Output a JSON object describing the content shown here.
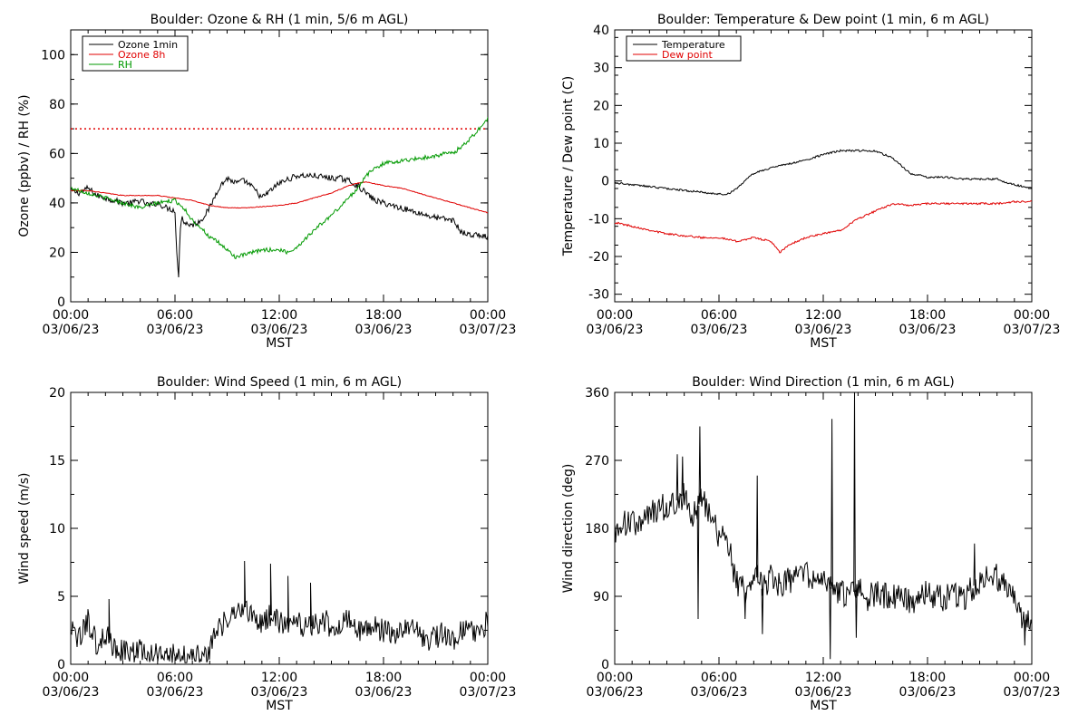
{
  "chart_data": [
    {
      "id": "ozone",
      "type": "line",
      "title": "Boulder: Ozone & RH (1 min, 5/6 m AGL)",
      "ylabel": "Ozone (ppbv) / RH (%)",
      "xlabel": "MST",
      "ylim": [
        0,
        110
      ],
      "yticks": [
        0,
        20,
        40,
        60,
        80,
        100
      ],
      "xlim": [
        0,
        24
      ],
      "xtick_hours": [
        0,
        6,
        12,
        18,
        24
      ],
      "xtick_times": [
        "00:00",
        "06:00",
        "12:00",
        "18:00",
        "00:00"
      ],
      "xtick_dates": [
        "03/06/23",
        "03/06/23",
        "03/06/23",
        "03/06/23",
        "03/07/23"
      ],
      "legend_position": "top-left",
      "hline": {
        "y": 70,
        "color": "#e00000",
        "style": "dotted"
      },
      "series": [
        {
          "name": "Ozone 1min",
          "color": "#000000",
          "x": [
            0,
            0.5,
            1,
            1.5,
            2,
            2.5,
            3,
            3.5,
            4,
            4.5,
            5,
            5.5,
            6,
            6.1,
            6.2,
            6.3,
            6.4,
            6.5,
            7,
            7.5,
            8,
            8.5,
            9,
            9.5,
            10,
            10.5,
            11,
            11.5,
            12,
            13,
            14,
            15,
            15.5,
            16,
            16.5,
            17,
            17.5,
            18,
            19,
            20,
            21,
            22,
            22.5,
            23,
            23.5,
            24
          ],
          "y": [
            45,
            44,
            46,
            43,
            42,
            41,
            40,
            40,
            41,
            39,
            40,
            38,
            37,
            20,
            9,
            30,
            35,
            32,
            31,
            33,
            38,
            46,
            50,
            48,
            49,
            46,
            42,
            45,
            48,
            51,
            51,
            50,
            50,
            49,
            47,
            44,
            41,
            40,
            38,
            36,
            34,
            33,
            28,
            27,
            27,
            26
          ]
        },
        {
          "name": "Ozone 8h",
          "color": "#e00000",
          "x": [
            0,
            1,
            2,
            3,
            4,
            5,
            6,
            7,
            8,
            9,
            10,
            11,
            12,
            13,
            14,
            15,
            16,
            16.5,
            17,
            18,
            19,
            20,
            21,
            22,
            23,
            24
          ],
          "y": [
            45,
            45,
            44,
            43,
            43,
            43,
            42,
            41,
            39,
            38,
            38,
            38.5,
            39,
            40,
            42,
            44,
            47,
            48,
            48.5,
            47,
            46,
            44,
            42,
            40,
            38,
            36
          ]
        },
        {
          "name": "RH",
          "color": "#009900",
          "x": [
            0,
            1,
            2,
            3,
            4,
            5,
            6,
            6.5,
            7,
            7.5,
            8,
            8.5,
            9,
            9.5,
            10,
            11,
            12,
            12.5,
            13,
            14,
            15,
            16,
            16.5,
            17,
            17.5,
            18,
            19,
            20,
            21,
            21.5,
            22,
            22.5,
            23,
            23.5,
            24
          ],
          "y": [
            46,
            44,
            42,
            40,
            38,
            40,
            41,
            38,
            33,
            30,
            26,
            24,
            21,
            18,
            19,
            21,
            21,
            20,
            22,
            29,
            35,
            42,
            46,
            51,
            54,
            56,
            57,
            58,
            59,
            60,
            60,
            63,
            66,
            70,
            74
          ]
        }
      ]
    },
    {
      "id": "temp",
      "type": "line",
      "title": "Boulder: Temperature & Dew point (1 min, 6 m AGL)",
      "ylabel": "Temperature / Dew point (C)",
      "xlabel": "MST",
      "ylim": [
        -32,
        40
      ],
      "yticks": [
        -30,
        -20,
        -10,
        0,
        10,
        20,
        30,
        40
      ],
      "xlim": [
        0,
        24
      ],
      "xtick_hours": [
        0,
        6,
        12,
        18,
        24
      ],
      "xtick_times": [
        "00:00",
        "06:00",
        "12:00",
        "18:00",
        "00:00"
      ],
      "xtick_dates": [
        "03/06/23",
        "03/06/23",
        "03/06/23",
        "03/06/23",
        "03/07/23"
      ],
      "legend_position": "top-left",
      "series": [
        {
          "name": "Temperature",
          "color": "#000000",
          "x": [
            0,
            1,
            2,
            3,
            4,
            5,
            6,
            6.5,
            7,
            7.5,
            8,
            9,
            10,
            11,
            12,
            13,
            14,
            15,
            16,
            16.5,
            17,
            18,
            19,
            20,
            21,
            22,
            22.5,
            23,
            24
          ],
          "y": [
            -0.5,
            -1,
            -1.5,
            -2,
            -2.5,
            -3,
            -3.5,
            -3.5,
            -2,
            0,
            2,
            3.5,
            4.5,
            5.5,
            7,
            8,
            8,
            8,
            6,
            4,
            2,
            1,
            1,
            0.5,
            0.5,
            0.5,
            -0.5,
            -1,
            -2
          ]
        },
        {
          "name": "Dew point",
          "color": "#e00000",
          "x": [
            0,
            1,
            2,
            3,
            4,
            5,
            6,
            7,
            8,
            9,
            9.5,
            10,
            11,
            12,
            13,
            14,
            15,
            16,
            17,
            18,
            19,
            20,
            21,
            22,
            23,
            24
          ],
          "y": [
            -11,
            -12,
            -13,
            -14,
            -14.5,
            -15,
            -15,
            -16,
            -15,
            -16,
            -19,
            -17,
            -15,
            -14,
            -13,
            -10,
            -8,
            -6,
            -6.5,
            -6,
            -6,
            -6,
            -6,
            -6,
            -5.5,
            -5.5
          ]
        }
      ]
    },
    {
      "id": "wspd",
      "type": "line",
      "title": "Boulder: Wind Speed (1 min, 6 m AGL)",
      "ylabel": "Wind speed (m/s)",
      "xlabel": "MST",
      "ylim": [
        0,
        20
      ],
      "yticks": [
        0,
        5,
        10,
        15,
        20
      ],
      "xlim": [
        0,
        24
      ],
      "xtick_hours": [
        0,
        6,
        12,
        18,
        24
      ],
      "xtick_times": [
        "00:00",
        "06:00",
        "12:00",
        "18:00",
        "00:00"
      ],
      "xtick_dates": [
        "03/06/23",
        "03/06/23",
        "03/06/23",
        "03/06/23",
        "03/07/23"
      ],
      "series": [
        {
          "name": "",
          "color": "#000000",
          "x": [
            0,
            0.5,
            1,
            1.5,
            2,
            2.5,
            3,
            3.5,
            4,
            4.5,
            5,
            5.5,
            6,
            6.5,
            7,
            7.5,
            8,
            8.5,
            9,
            9.5,
            10,
            10.5,
            11,
            11.5,
            12,
            12.5,
            13,
            13.5,
            14,
            14.5,
            15,
            15.5,
            16,
            16.5,
            17,
            17.5,
            18,
            18.5,
            19,
            19.5,
            20,
            20.5,
            21,
            21.5,
            22,
            22.5,
            23,
            23.5,
            24
          ],
          "y": [
            2.5,
            1.8,
            3.2,
            1.5,
            2.2,
            1.2,
            1.0,
            0.8,
            1.1,
            0.6,
            0.7,
            0.9,
            0.7,
            0.5,
            0.8,
            0.6,
            1.2,
            2.6,
            3.2,
            3.8,
            4.2,
            3.5,
            3.0,
            3.6,
            3.1,
            2.8,
            3.3,
            2.6,
            2.9,
            3.4,
            2.7,
            3.0,
            3.2,
            2.6,
            2.5,
            2.9,
            2.4,
            2.2,
            2.5,
            2.8,
            2.3,
            1.6,
            2.0,
            2.3,
            1.9,
            2.5,
            2.7,
            2.4,
            3.1
          ]
        },
        {
          "name": "",
          "color": "#000000",
          "x": [
            2.2,
            10,
            11.5,
            12.5,
            13.8
          ],
          "y": [
            4.8,
            7.6,
            7.4,
            6.5,
            6.0
          ]
        }
      ]
    },
    {
      "id": "wdir",
      "type": "line",
      "title": "Boulder: Wind Direction (1 min, 6 m AGL)",
      "ylabel": "Wind direction (deg)",
      "xlabel": "MST",
      "ylim": [
        0,
        360
      ],
      "yticks": [
        0,
        90,
        180,
        270,
        360
      ],
      "xlim": [
        0,
        24
      ],
      "xtick_hours": [
        0,
        6,
        12,
        18,
        24
      ],
      "xtick_times": [
        "00:00",
        "06:00",
        "12:00",
        "18:00",
        "00:00"
      ],
      "xtick_dates": [
        "03/06/23",
        "03/06/23",
        "03/06/23",
        "03/06/23",
        "03/07/23"
      ],
      "series": [
        {
          "name": "",
          "color": "#000000",
          "x": [
            0,
            0.5,
            1,
            1.5,
            2,
            2.5,
            3,
            3.5,
            4,
            4.5,
            5,
            5.5,
            6,
            6.5,
            7,
            7.5,
            8,
            8.5,
            9,
            9.5,
            10,
            10.5,
            11,
            11.5,
            12,
            12.5,
            13,
            13.5,
            14,
            14.5,
            15,
            15.5,
            16,
            16.5,
            17,
            17.5,
            18,
            18.5,
            19,
            19.5,
            20,
            20.5,
            21,
            21.5,
            22,
            22.5,
            23,
            23.5,
            24
          ],
          "y": [
            175,
            185,
            190,
            180,
            200,
            205,
            210,
            215,
            225,
            195,
            220,
            200,
            170,
            160,
            110,
            95,
            125,
            100,
            115,
            105,
            110,
            120,
            118,
            112,
            110,
            100,
            95,
            90,
            100,
            85,
            95,
            90,
            88,
            90,
            80,
            85,
            95,
            90,
            88,
            92,
            85,
            100,
            110,
            120,
            115,
            108,
            95,
            60,
            55
          ]
        }
      ],
      "spikes": [
        {
          "x": 3.6,
          "y": 278
        },
        {
          "x": 3.9,
          "y": 275
        },
        {
          "x": 4.8,
          "y": 60
        },
        {
          "x": 4.9,
          "y": 315
        },
        {
          "x": 7.5,
          "y": 60
        },
        {
          "x": 8.2,
          "y": 250
        },
        {
          "x": 8.5,
          "y": 40
        },
        {
          "x": 12.4,
          "y": 7
        },
        {
          "x": 12.5,
          "y": 325
        },
        {
          "x": 13.8,
          "y": 360
        },
        {
          "x": 13.9,
          "y": 35
        },
        {
          "x": 20.7,
          "y": 160
        },
        {
          "x": 23.6,
          "y": 25
        }
      ]
    }
  ]
}
